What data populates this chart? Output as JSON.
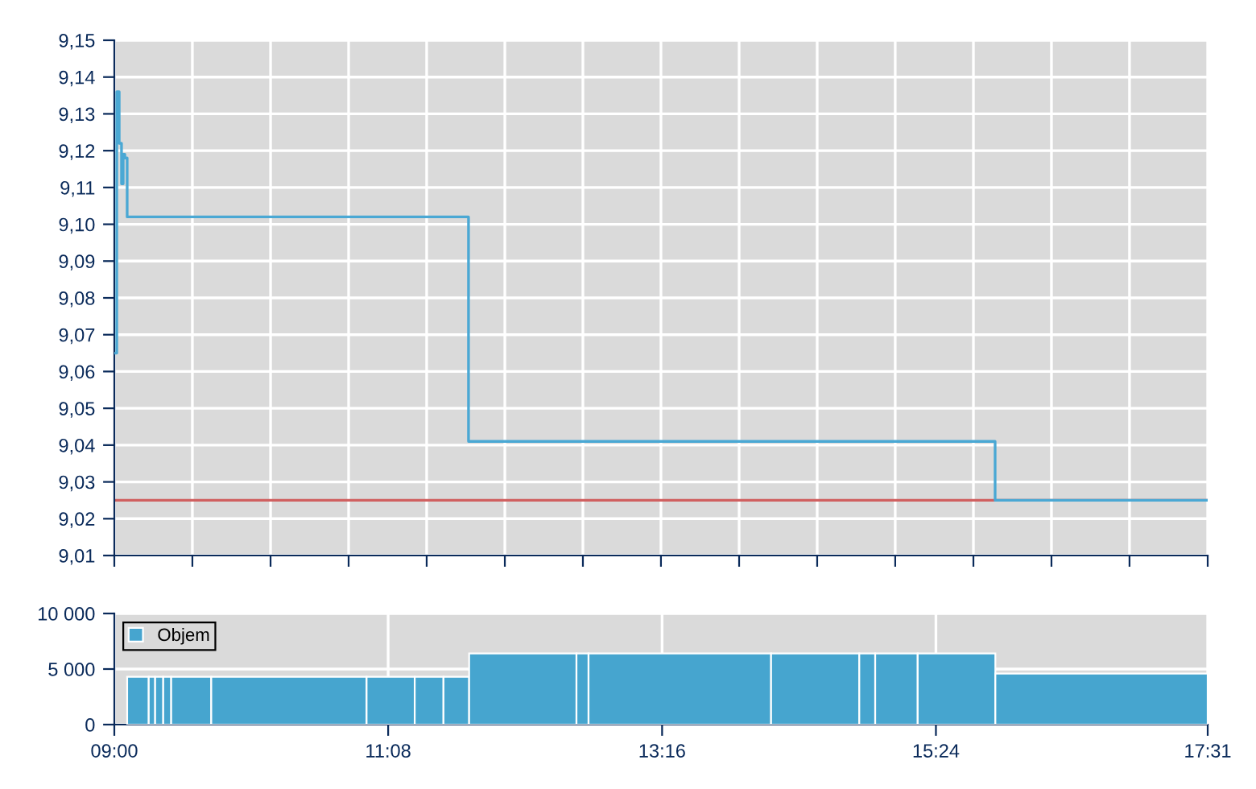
{
  "chart_data": [
    {
      "type": "step",
      "x": [
        9.0,
        9.019,
        9.038,
        9.056,
        9.069,
        9.082,
        9.1,
        11.759,
        15.861,
        17.517
      ],
      "series": [
        {
          "color": "#4aa8d4",
          "values": [
            9.065,
            9.136,
            9.122,
            9.111,
            9.119,
            9.118,
            9.102,
            9.041,
            9.025,
            9.025
          ]
        }
      ],
      "ref_lines": [
        {
          "axis": "y",
          "value": 9.025,
          "color": "#d06060"
        }
      ],
      "xlim": [
        9.0,
        17.517
      ],
      "xticks": [
        {
          "value": 9.0,
          "label": null
        },
        {
          "value": 9.608,
          "label": null
        },
        {
          "value": 10.217,
          "label": null
        },
        {
          "value": 10.825,
          "label": null
        },
        {
          "value": 11.433,
          "label": null
        },
        {
          "value": 12.042,
          "label": null
        },
        {
          "value": 12.65,
          "label": null
        },
        {
          "value": 13.258,
          "label": null
        },
        {
          "value": 13.867,
          "label": null
        },
        {
          "value": 14.475,
          "label": null
        },
        {
          "value": 15.083,
          "label": null
        },
        {
          "value": 15.692,
          "label": null
        },
        {
          "value": 16.3,
          "label": null
        },
        {
          "value": 16.908,
          "label": null
        },
        {
          "value": 17.517,
          "label": null
        }
      ],
      "ylim": [
        9.01,
        9.15
      ],
      "yticks": [
        {
          "value": 9.01,
          "label": "9,01"
        },
        {
          "value": 9.02,
          "label": "9,02"
        },
        {
          "value": 9.03,
          "label": "9,03"
        },
        {
          "value": 9.04,
          "label": "9,04"
        },
        {
          "value": 9.05,
          "label": "9,05"
        },
        {
          "value": 9.06,
          "label": "9,06"
        },
        {
          "value": 9.07,
          "label": "9,07"
        },
        {
          "value": 9.08,
          "label": "9,08"
        },
        {
          "value": 9.09,
          "label": "9,09"
        },
        {
          "value": 9.1,
          "label": "9,10"
        },
        {
          "value": 9.11,
          "label": "9,11"
        },
        {
          "value": 9.12,
          "label": "9,12"
        },
        {
          "value": 9.13,
          "label": "9,13"
        },
        {
          "value": 9.14,
          "label": "9,14"
        },
        {
          "value": 9.15,
          "label": "9,15"
        }
      ],
      "grid": true,
      "tick_labels": "y",
      "legend": false
    },
    {
      "type": "bar",
      "x": [
        9.184,
        9.293,
        9.3495,
        9.412,
        9.599,
        10.36,
        11.1525,
        11.452,
        11.664,
        12.182,
        12.647,
        13.405,
        14.4595,
        14.865,
        15.0925,
        15.5605,
        16.69
      ],
      "series": [
        {
          "name": "Objem",
          "color": "#46a5cf",
          "values": [
            4300,
            4300,
            4300,
            4300,
            4300,
            4300,
            4300,
            4300,
            4300,
            6400,
            6400,
            6400,
            6400,
            6400,
            6400,
            6400,
            4600
          ]
        }
      ],
      "xlim": [
        9.0,
        17.517
      ],
      "xticks": [
        {
          "value": 9.0,
          "label": "09:00"
        },
        {
          "value": 11.133,
          "label": "11:08"
        },
        {
          "value": 13.267,
          "label": "13:16"
        },
        {
          "value": 15.4,
          "label": "15:24"
        },
        {
          "value": 17.517,
          "label": "17:31"
        }
      ],
      "ylim": [
        0,
        10000
      ],
      "yticks": [
        {
          "value": 0,
          "label": "0"
        },
        {
          "value": 5000,
          "label": "5 000"
        },
        {
          "value": 10000,
          "label": "10 000"
        }
      ],
      "grid": true,
      "legend": "top left"
    }
  ]
}
